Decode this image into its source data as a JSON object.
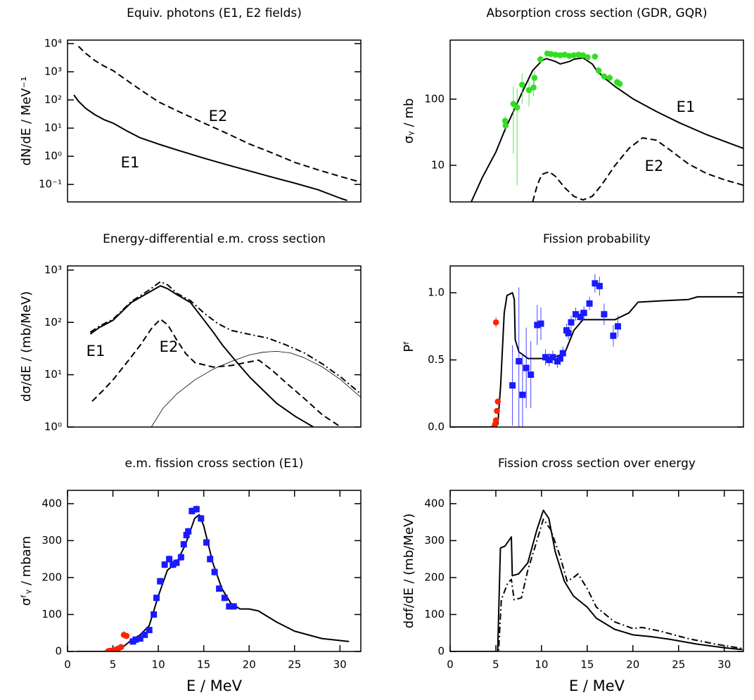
{
  "chart_data": [
    {
      "type": "line",
      "title": "Equiv. photons (E1, E2 fields)",
      "ylabel": "dN/dE  /  MeV⁻¹",
      "xlim": [
        0,
        32.2
      ],
      "ylim": [
        0.024,
        13300
      ],
      "ylog": true,
      "yticks": [
        {
          "value": 0.1,
          "label": "10⁻¹"
        },
        {
          "value": 1,
          "label": "10⁰"
        },
        {
          "value": 10,
          "label": "10¹"
        },
        {
          "value": 100,
          "label": "10²"
        },
        {
          "value": 1000,
          "label": "10³"
        },
        {
          "value": 10000,
          "label": "10⁴"
        }
      ],
      "annotations": [
        "E1",
        "E2"
      ],
      "series": [
        {
          "type": "line",
          "style": "solid",
          "color": "#000000",
          "x": [
            0.7,
            1.2,
            2,
            3,
            4,
            5,
            6.5,
            8,
            10,
            12.5,
            15,
            17.5,
            20,
            22.5,
            25,
            27.5,
            30,
            30.7
          ],
          "values": [
            150,
            90,
            50,
            30,
            20,
            15,
            8,
            4.5,
            2.7,
            1.5,
            0.85,
            0.5,
            0.3,
            0.18,
            0.11,
            0.065,
            0.032,
            0.027
          ]
        },
        {
          "type": "line",
          "style": "dashed",
          "color": "#000000",
          "x": [
            1.2,
            2,
            3,
            4,
            5,
            6.5,
            8,
            10,
            12.5,
            15,
            17.5,
            20,
            22.5,
            25,
            27.5,
            30,
            32.2
          ],
          "values": [
            8000,
            4500,
            2500,
            1600,
            1100,
            500,
            230,
            85,
            35,
            15,
            6.5,
            2.7,
            1.3,
            0.6,
            0.33,
            0.19,
            0.12
          ]
        }
      ]
    },
    {
      "type": "line",
      "title": "Absorption cross section (GDR, GQR)",
      "ylabel": "σᵧ  /  mb",
      "xlim": [
        0,
        32
      ],
      "ylim": [
        2.8,
        780
      ],
      "ylog": true,
      "yticks": [
        10,
        100
      ],
      "annotations": [
        "E1",
        "E2"
      ],
      "series": [
        {
          "type": "line",
          "style": "solid",
          "color": "#000000",
          "x": [
            2.3,
            3.5,
            5,
            6,
            7,
            8,
            9,
            10,
            10.5,
            11.5,
            12,
            13,
            13.5,
            14.5,
            15.5,
            16,
            17,
            18,
            20,
            22.5,
            25,
            28,
            32
          ],
          "values": [
            2.8,
            6.5,
            16,
            35,
            70,
            140,
            270,
            380,
            410,
            370,
            340,
            370,
            400,
            420,
            340,
            270,
            200,
            155,
            100,
            65,
            44,
            29,
            18
          ]
        },
        {
          "type": "line",
          "style": "dashed",
          "color": "#000000",
          "x": [
            9,
            9.5,
            10,
            10.8,
            11.5,
            12.5,
            13.5,
            14.5,
            15.5,
            16.5,
            18,
            19.5,
            21,
            22.5,
            24,
            26,
            28,
            30,
            32
          ],
          "values": [
            2.8,
            5,
            7.3,
            8,
            6.8,
            4.6,
            3.4,
            3,
            3.4,
            5,
            10,
            18,
            26,
            24,
            17,
            10.5,
            7.5,
            6,
            5
          ]
        },
        {
          "type": "scatter",
          "marker": "circle",
          "color": "#33dd22",
          "x": [
            6.0,
            6.05,
            6.9,
            7.3,
            7.85,
            8.6,
            9.1,
            9.2,
            9.85,
            10.6,
            11.0,
            11.5,
            12.0,
            12.5,
            13.0,
            13.5,
            14.0,
            14.5,
            15.0,
            15.8,
            16.2,
            16.8,
            17.4,
            18.2,
            18.5
          ],
          "values": [
            47,
            40,
            85,
            75,
            165,
            137,
            150,
            210,
            400,
            490,
            480,
            470,
            460,
            470,
            450,
            460,
            470,
            460,
            430,
            440,
            270,
            220,
            210,
            180,
            170
          ],
          "errors": [
            10,
            8,
            70,
            70,
            80,
            60,
            40,
            60,
            60,
            40,
            30,
            30,
            30,
            30,
            30,
            30,
            30,
            30,
            30,
            40,
            40,
            30,
            30,
            30,
            30
          ]
        }
      ]
    },
    {
      "type": "line",
      "title": "Energy-differential e.m. cross section",
      "ylabel": "dσ/dE  /  (mb/MeV)",
      "xlim": [
        0,
        32.2
      ],
      "ylim": [
        1,
        1200
      ],
      "ylog": true,
      "yticks": [
        {
          "value": 1,
          "label": "10⁰"
        },
        {
          "value": 10,
          "label": "10¹"
        },
        {
          "value": 100,
          "label": "10²"
        },
        {
          "value": 1000,
          "label": "10³"
        }
      ],
      "annotations": [
        "E1",
        "E2"
      ],
      "series": [
        {
          "type": "line",
          "style": "solid",
          "color": "#000000",
          "x": [
            2.5,
            3.5,
            5,
            7,
            9,
            10.2,
            11,
            12,
            13.5,
            15,
            16,
            17,
            18.5,
            20,
            21.5,
            23,
            25,
            27
          ],
          "values": [
            60,
            80,
            110,
            240,
            380,
            500,
            440,
            340,
            240,
            110,
            65,
            37,
            18,
            9,
            5,
            2.8,
            1.6,
            1
          ]
        },
        {
          "type": "line",
          "style": "dashdot",
          "color": "#000000",
          "x": [
            2.5,
            3.5,
            5,
            7,
            9,
            10.2,
            11,
            12,
            13.5,
            15,
            16.5,
            18,
            20,
            22,
            24,
            26,
            28,
            30,
            32.2
          ],
          "values": [
            65,
            85,
            115,
            250,
            420,
            600,
            520,
            360,
            260,
            150,
            95,
            70,
            59,
            50,
            37,
            26,
            16,
            9,
            4.3
          ]
        },
        {
          "type": "line",
          "style": "dashed",
          "color": "#000000",
          "x": [
            2.7,
            4,
            5,
            6.5,
            8,
            9.3,
            10.2,
            11,
            12,
            13,
            14,
            16,
            18,
            19.5,
            21,
            22.5,
            24,
            26,
            28,
            30
          ],
          "values": [
            3.1,
            5.2,
            8,
            17,
            37,
            80,
            115,
            90,
            46,
            25,
            17,
            14,
            15,
            17,
            19,
            12,
            7,
            3.5,
            1.7,
            1
          ]
        },
        {
          "type": "line",
          "style": "thin",
          "color": "#000000",
          "x": [
            9.2,
            10.5,
            12,
            14,
            16,
            18,
            20,
            21.5,
            23,
            24.5,
            26,
            28,
            30,
            32.2
          ],
          "values": [
            1,
            2.3,
            4.3,
            8,
            12.8,
            18,
            24,
            27,
            28,
            26,
            21,
            14,
            8,
            3.7
          ]
        }
      ]
    },
    {
      "type": "line",
      "title": "Fission probability",
      "ylabel": "Pᶠ",
      "xlim": [
        0,
        32
      ],
      "ylim": [
        0,
        1.2
      ],
      "ylog": false,
      "yticks": [
        {
          "value": 0,
          "label": "0.0"
        },
        0.5,
        {
          "value": 1,
          "label": "1.0"
        }
      ],
      "series": [
        {
          "type": "line",
          "style": "solid",
          "color": "#000000",
          "x": [
            0,
            5,
            5.2,
            5.5,
            5.9,
            6.2,
            6.8,
            7.0,
            7.1,
            7.5,
            8.5,
            11,
            12.5,
            13.5,
            14.5,
            18,
            19.5,
            20.5,
            23,
            26,
            27,
            32
          ],
          "values": [
            0,
            0,
            0.02,
            0.3,
            0.85,
            0.98,
            1.0,
            0.95,
            0.65,
            0.56,
            0.51,
            0.51,
            0.55,
            0.72,
            0.8,
            0.8,
            0.85,
            0.93,
            0.94,
            0.95,
            0.97,
            0.97
          ]
        },
        {
          "type": "scatter",
          "marker": "circle",
          "color": "#ff2200",
          "x": [
            4.8,
            4.9,
            5.0,
            5.1,
            5.2,
            5.0
          ],
          "values": [
            0.0,
            0.02,
            0.05,
            0.12,
            0.19,
            0.78
          ],
          "errors": [
            0.01,
            0.01,
            0.01,
            0.02,
            0.02,
            0.04
          ]
        },
        {
          "type": "scatter",
          "marker": "square",
          "color": "#1a1aff",
          "x": [
            6.8,
            7.5,
            7.9,
            8.3,
            8.8,
            9.5,
            9.9,
            10.4,
            10.8,
            11.2,
            11.7,
            12.0,
            12.3,
            12.7,
            12.9,
            13.2,
            13.7,
            14.2,
            14.6,
            15.2,
            15.8,
            16.3,
            16.8,
            17.8,
            18.3
          ],
          "values": [
            0.31,
            0.49,
            0.24,
            0.44,
            0.39,
            0.76,
            0.77,
            0.52,
            0.5,
            0.52,
            0.49,
            0.51,
            0.55,
            0.72,
            0.7,
            0.78,
            0.84,
            0.82,
            0.85,
            0.92,
            1.07,
            1.05,
            0.84,
            0.68,
            0.75
          ],
          "errors": [
            0.3,
            0.55,
            0.3,
            0.3,
            0.25,
            0.15,
            0.12,
            0.06,
            0.05,
            0.05,
            0.05,
            0.05,
            0.05,
            0.05,
            0.05,
            0.05,
            0.05,
            0.05,
            0.05,
            0.05,
            0.07,
            0.07,
            0.08,
            0.08,
            0.08
          ]
        }
      ]
    },
    {
      "type": "line",
      "title": "e.m. fission cross section (E1)",
      "ylabel": "σᶠᵧ  /  mbarn",
      "xlabel": "E  /  MeV",
      "xlim": [
        0,
        32.3
      ],
      "ylim": [
        0,
        436
      ],
      "ylog": false,
      "xticks": [
        0,
        5,
        10,
        15,
        20,
        25,
        30
      ],
      "yticks": [
        0,
        100,
        200,
        300,
        400
      ],
      "series": [
        {
          "type": "line",
          "style": "solid",
          "color": "#000000",
          "x": [
            1,
            4,
            5,
            6,
            7,
            8,
            9,
            10,
            11,
            12,
            13,
            14,
            14.5,
            15,
            16,
            17,
            18,
            19,
            20,
            21,
            23,
            25,
            28,
            31
          ],
          "values": [
            0,
            0,
            3,
            10,
            30,
            45,
            70,
            150,
            220,
            240,
            290,
            360,
            370,
            340,
            240,
            170,
            130,
            115,
            115,
            110,
            80,
            55,
            35,
            27
          ]
        },
        {
          "type": "scatter",
          "marker": "circle",
          "color": "#ff2200",
          "x": [
            4.5,
            4.7,
            5.0,
            5.3,
            5.6,
            5.9,
            6.2,
            6.5
          ],
          "values": [
            1,
            2,
            3,
            5,
            8,
            12,
            45,
            42
          ],
          "errors": [
            1,
            1,
            1,
            2,
            2,
            3,
            10,
            8
          ]
        },
        {
          "type": "scatter",
          "marker": "square",
          "color": "#1a1aff",
          "x": [
            7.2,
            7.5,
            8,
            8.5,
            9,
            9.5,
            9.8,
            10.2,
            10.7,
            11.2,
            11.6,
            12,
            12.5,
            12.8,
            13.1,
            13.3,
            13.7,
            14.2,
            14.7,
            15.3,
            15.7,
            16.2,
            16.7,
            17.3,
            17.8,
            18.3
          ],
          "values": [
            27,
            32,
            35,
            45,
            58,
            100,
            145,
            190,
            235,
            250,
            235,
            240,
            255,
            290,
            315,
            325,
            380,
            385,
            360,
            295,
            250,
            215,
            170,
            145,
            122,
            122
          ],
          "errors": [
            5,
            5,
            5,
            6,
            6,
            8,
            8,
            10,
            10,
            10,
            10,
            10,
            10,
            10,
            10,
            10,
            10,
            10,
            10,
            10,
            10,
            10,
            8,
            8,
            6,
            6
          ]
        }
      ]
    },
    {
      "type": "line",
      "title": "Fission cross section over energy",
      "ylabel": "dσf/dE  /  (mb/MeV)",
      "xlabel": "E  /  MeV",
      "xlim": [
        0,
        32.1
      ],
      "ylim": [
        0,
        436
      ],
      "ylog": false,
      "xticks": [
        0,
        5,
        10,
        15,
        20,
        25,
        30
      ],
      "yticks": [
        0,
        100,
        200,
        300,
        400
      ],
      "series": [
        {
          "type": "line",
          "style": "solid",
          "color": "#000000",
          "x": [
            0,
            5.2,
            5.5,
            6,
            6.7,
            6.8,
            7.5,
            8.5,
            9.5,
            10.2,
            10.8,
            11.5,
            12.5,
            13.5,
            15,
            16,
            18,
            20,
            22,
            24,
            27,
            30,
            32
          ],
          "values": [
            0,
            0,
            280,
            285,
            310,
            205,
            210,
            240,
            330,
            382,
            360,
            270,
            190,
            150,
            120,
            90,
            60,
            45,
            40,
            33,
            20,
            10,
            5
          ]
        },
        {
          "type": "line",
          "style": "dashdot",
          "color": "#000000",
          "x": [
            0,
            5.3,
            5.6,
            6.3,
            6.7,
            7,
            7.8,
            8.5,
            9.5,
            10.2,
            11,
            12,
            12.8,
            13.5,
            14,
            15,
            16,
            18,
            20,
            21,
            23,
            26,
            29,
            32
          ],
          "values": [
            0,
            0,
            140,
            185,
            195,
            140,
            145,
            220,
            300,
            358,
            330,
            260,
            190,
            200,
            210,
            170,
            120,
            80,
            62,
            65,
            55,
            35,
            20,
            8
          ]
        }
      ]
    }
  ]
}
